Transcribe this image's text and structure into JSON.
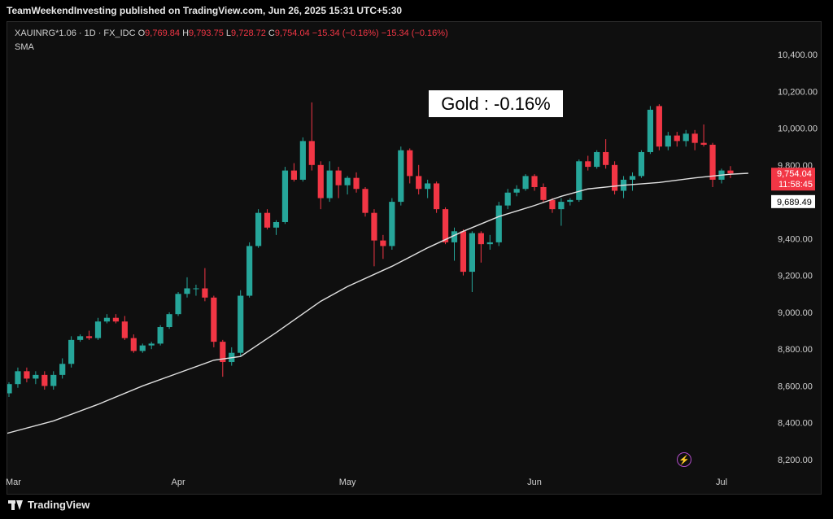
{
  "header": {
    "title": "TeamWeekendInvesting published on TradingView.com, Jun 26, 2025 15:31 UTC+5:30"
  },
  "legend": {
    "symbol": "XAUINRG*1.06 · 1D · FX_IDC",
    "o_label": "O",
    "o_value": "9,769.84",
    "h_label": "H",
    "h_value": "9,793.75",
    "l_label": "L",
    "l_value": "9,728.72",
    "c_label": "C",
    "c_value": "9,754.04",
    "change": "−15.34 (−0.16%)",
    "change2": "−15.34 (−0.16%)",
    "indicator": "SMA"
  },
  "annotation": {
    "text": "Gold : -0.16%"
  },
  "price_labels": {
    "last": "9,754.04",
    "countdown": "11:58:45",
    "sma": "9,689.49"
  },
  "footer": {
    "brand": "TradingView"
  },
  "icons": {
    "logo": "tradingview-logo-icon",
    "bolt": "lightning-icon"
  },
  "colors": {
    "up": "#26a69a",
    "down": "#f23645",
    "sma": "#e0e0e0",
    "background": "#0f0f0f"
  },
  "chart_data": {
    "type": "candlestick",
    "y_axis": {
      "ticks": [
        8200,
        8400,
        8600,
        8800,
        9000,
        9200,
        9400,
        9600,
        9800,
        10000,
        10200,
        10400
      ],
      "tick_labels": [
        "8,200.00",
        "8,400.00",
        "8,600.00",
        "8,800.00",
        "9,000.00",
        "9,200.00",
        "9,400.00",
        "9,600.00",
        "9,800.00",
        "10,000.00",
        "10,200.00",
        "10,400.00"
      ],
      "range": [
        8140,
        10480
      ]
    },
    "x_axis": {
      "ticks": [
        {
          "label": "Mar",
          "index": 0
        },
        {
          "label": "Apr",
          "index": 19
        },
        {
          "label": "May",
          "index": 38
        },
        {
          "label": "Jun",
          "index": 59
        },
        {
          "label": "Jul",
          "index": 80
        }
      ]
    },
    "candles": [
      {
        "i": 0,
        "o": 8560,
        "h": 8620,
        "l": 8540,
        "c": 8610
      },
      {
        "i": 1,
        "o": 8610,
        "h": 8700,
        "l": 8590,
        "c": 8680
      },
      {
        "i": 2,
        "o": 8680,
        "h": 8700,
        "l": 8620,
        "c": 8640
      },
      {
        "i": 3,
        "o": 8640,
        "h": 8680,
        "l": 8610,
        "c": 8660
      },
      {
        "i": 4,
        "o": 8660,
        "h": 8680,
        "l": 8580,
        "c": 8600
      },
      {
        "i": 5,
        "o": 8600,
        "h": 8680,
        "l": 8580,
        "c": 8660
      },
      {
        "i": 6,
        "o": 8660,
        "h": 8750,
        "l": 8640,
        "c": 8720
      },
      {
        "i": 7,
        "o": 8720,
        "h": 8870,
        "l": 8700,
        "c": 8850
      },
      {
        "i": 8,
        "o": 8850,
        "h": 8880,
        "l": 8840,
        "c": 8870
      },
      {
        "i": 9,
        "o": 8870,
        "h": 8900,
        "l": 8850,
        "c": 8860
      },
      {
        "i": 10,
        "o": 8860,
        "h": 8970,
        "l": 8850,
        "c": 8950
      },
      {
        "i": 11,
        "o": 8950,
        "h": 8990,
        "l": 8940,
        "c": 8970
      },
      {
        "i": 12,
        "o": 8970,
        "h": 8990,
        "l": 8940,
        "c": 8950
      },
      {
        "i": 13,
        "o": 8950,
        "h": 8980,
        "l": 8850,
        "c": 8860
      },
      {
        "i": 14,
        "o": 8860,
        "h": 8880,
        "l": 8780,
        "c": 8790
      },
      {
        "i": 15,
        "o": 8790,
        "h": 8830,
        "l": 8780,
        "c": 8820
      },
      {
        "i": 16,
        "o": 8820,
        "h": 8840,
        "l": 8800,
        "c": 8830
      },
      {
        "i": 17,
        "o": 8830,
        "h": 8930,
        "l": 8820,
        "c": 8920
      },
      {
        "i": 18,
        "o": 8920,
        "h": 9000,
        "l": 8910,
        "c": 8990
      },
      {
        "i": 19,
        "o": 8990,
        "h": 9110,
        "l": 8980,
        "c": 9100
      },
      {
        "i": 20,
        "o": 9100,
        "h": 9190,
        "l": 9080,
        "c": 9130
      },
      {
        "i": 21,
        "o": 9130,
        "h": 9150,
        "l": 9090,
        "c": 9130
      },
      {
        "i": 22,
        "o": 9130,
        "h": 9240,
        "l": 9060,
        "c": 9080
      },
      {
        "i": 23,
        "o": 9080,
        "h": 9090,
        "l": 8810,
        "c": 8840
      },
      {
        "i": 24,
        "o": 8840,
        "h": 8850,
        "l": 8650,
        "c": 8730
      },
      {
        "i": 25,
        "o": 8730,
        "h": 8810,
        "l": 8710,
        "c": 8780
      },
      {
        "i": 26,
        "o": 8780,
        "h": 9120,
        "l": 8760,
        "c": 9090
      },
      {
        "i": 27,
        "o": 9090,
        "h": 9380,
        "l": 9080,
        "c": 9360
      },
      {
        "i": 28,
        "o": 9360,
        "h": 9560,
        "l": 9350,
        "c": 9540
      },
      {
        "i": 29,
        "o": 9540,
        "h": 9560,
        "l": 9450,
        "c": 9460
      },
      {
        "i": 30,
        "o": 9460,
        "h": 9500,
        "l": 9420,
        "c": 9490
      },
      {
        "i": 31,
        "o": 9490,
        "h": 9790,
        "l": 9480,
        "c": 9770
      },
      {
        "i": 32,
        "o": 9770,
        "h": 9810,
        "l": 9710,
        "c": 9720
      },
      {
        "i": 33,
        "o": 9720,
        "h": 9950,
        "l": 9710,
        "c": 9930
      },
      {
        "i": 34,
        "o": 9930,
        "h": 10140,
        "l": 9770,
        "c": 9800
      },
      {
        "i": 35,
        "o": 9800,
        "h": 9820,
        "l": 9560,
        "c": 9620
      },
      {
        "i": 36,
        "o": 9620,
        "h": 9820,
        "l": 9600,
        "c": 9770
      },
      {
        "i": 37,
        "o": 9770,
        "h": 9790,
        "l": 9620,
        "c": 9690
      },
      {
        "i": 38,
        "o": 9690,
        "h": 9740,
        "l": 9640,
        "c": 9730
      },
      {
        "i": 39,
        "o": 9730,
        "h": 9760,
        "l": 9650,
        "c": 9670
      },
      {
        "i": 40,
        "o": 9670,
        "h": 9680,
        "l": 9520,
        "c": 9540
      },
      {
        "i": 41,
        "o": 9540,
        "h": 9560,
        "l": 9250,
        "c": 9390
      },
      {
        "i": 42,
        "o": 9390,
        "h": 9420,
        "l": 9290,
        "c": 9360
      },
      {
        "i": 43,
        "o": 9360,
        "h": 9620,
        "l": 9340,
        "c": 9600
      },
      {
        "i": 44,
        "o": 9600,
        "h": 9900,
        "l": 9580,
        "c": 9880
      },
      {
        "i": 45,
        "o": 9880,
        "h": 9890,
        "l": 9700,
        "c": 9740
      },
      {
        "i": 46,
        "o": 9740,
        "h": 9800,
        "l": 9640,
        "c": 9670
      },
      {
        "i": 47,
        "o": 9670,
        "h": 9720,
        "l": 9620,
        "c": 9700
      },
      {
        "i": 48,
        "o": 9700,
        "h": 9710,
        "l": 9540,
        "c": 9560
      },
      {
        "i": 49,
        "o": 9560,
        "h": 9570,
        "l": 9370,
        "c": 9380
      },
      {
        "i": 50,
        "o": 9380,
        "h": 9460,
        "l": 9280,
        "c": 9440
      },
      {
        "i": 51,
        "o": 9440,
        "h": 9450,
        "l": 9200,
        "c": 9220
      },
      {
        "i": 52,
        "o": 9220,
        "h": 9440,
        "l": 9110,
        "c": 9430
      },
      {
        "i": 53,
        "o": 9430,
        "h": 9440,
        "l": 9270,
        "c": 9370
      },
      {
        "i": 54,
        "o": 9370,
        "h": 9420,
        "l": 9340,
        "c": 9380
      },
      {
        "i": 55,
        "o": 9380,
        "h": 9600,
        "l": 9360,
        "c": 9580
      },
      {
        "i": 56,
        "o": 9580,
        "h": 9670,
        "l": 9560,
        "c": 9650
      },
      {
        "i": 57,
        "o": 9650,
        "h": 9690,
        "l": 9630,
        "c": 9670
      },
      {
        "i": 58,
        "o": 9670,
        "h": 9750,
        "l": 9660,
        "c": 9740
      },
      {
        "i": 59,
        "o": 9740,
        "h": 9750,
        "l": 9660,
        "c": 9680
      },
      {
        "i": 60,
        "o": 9680,
        "h": 9700,
        "l": 9600,
        "c": 9610
      },
      {
        "i": 61,
        "o": 9610,
        "h": 9620,
        "l": 9540,
        "c": 9560
      },
      {
        "i": 62,
        "o": 9560,
        "h": 9620,
        "l": 9470,
        "c": 9600
      },
      {
        "i": 63,
        "o": 9600,
        "h": 9620,
        "l": 9580,
        "c": 9610
      },
      {
        "i": 64,
        "o": 9610,
        "h": 9830,
        "l": 9600,
        "c": 9820
      },
      {
        "i": 65,
        "o": 9820,
        "h": 9850,
        "l": 9770,
        "c": 9790
      },
      {
        "i": 66,
        "o": 9790,
        "h": 9880,
        "l": 9780,
        "c": 9870
      },
      {
        "i": 67,
        "o": 9870,
        "h": 9940,
        "l": 9780,
        "c": 9800
      },
      {
        "i": 68,
        "o": 9800,
        "h": 9820,
        "l": 9640,
        "c": 9660
      },
      {
        "i": 69,
        "o": 9660,
        "h": 9740,
        "l": 9620,
        "c": 9720
      },
      {
        "i": 70,
        "o": 9720,
        "h": 9760,
        "l": 9660,
        "c": 9740
      },
      {
        "i": 71,
        "o": 9740,
        "h": 9880,
        "l": 9730,
        "c": 9870
      },
      {
        "i": 72,
        "o": 9870,
        "h": 10120,
        "l": 9860,
        "c": 10100
      },
      {
        "i": 73,
        "o": 10120,
        "h": 10130,
        "l": 9880,
        "c": 9900
      },
      {
        "i": 74,
        "o": 9900,
        "h": 9980,
        "l": 9880,
        "c": 9960
      },
      {
        "i": 75,
        "o": 9960,
        "h": 9980,
        "l": 9900,
        "c": 9930
      },
      {
        "i": 76,
        "o": 9930,
        "h": 9990,
        "l": 9900,
        "c": 9970
      },
      {
        "i": 77,
        "o": 9970,
        "h": 9990,
        "l": 9880,
        "c": 9920
      },
      {
        "i": 78,
        "o": 9920,
        "h": 10020,
        "l": 9900,
        "c": 9910
      },
      {
        "i": 79,
        "o": 9910,
        "h": 9920,
        "l": 9680,
        "c": 9720
      },
      {
        "i": 80,
        "o": 9720,
        "h": 9780,
        "l": 9700,
        "c": 9770
      },
      {
        "i": 81,
        "o": 9769.84,
        "h": 9793.75,
        "l": 9728.72,
        "c": 9754.04
      }
    ],
    "sma": {
      "name": "SMA",
      "points": [
        [
          -2,
          8320
        ],
        [
          5,
          8410
        ],
        [
          10,
          8500
        ],
        [
          15,
          8600
        ],
        [
          19,
          8670
        ],
        [
          23,
          8740
        ],
        [
          26,
          8760
        ],
        [
          30,
          8890
        ],
        [
          35,
          9060
        ],
        [
          38,
          9140
        ],
        [
          43,
          9250
        ],
        [
          47,
          9350
        ],
        [
          51,
          9440
        ],
        [
          55,
          9520
        ],
        [
          59,
          9580
        ],
        [
          62,
          9630
        ],
        [
          65,
          9670
        ],
        [
          69,
          9690
        ],
        [
          73,
          9705
        ],
        [
          77,
          9730
        ],
        [
          81,
          9750
        ],
        [
          83,
          9755
        ]
      ]
    }
  }
}
